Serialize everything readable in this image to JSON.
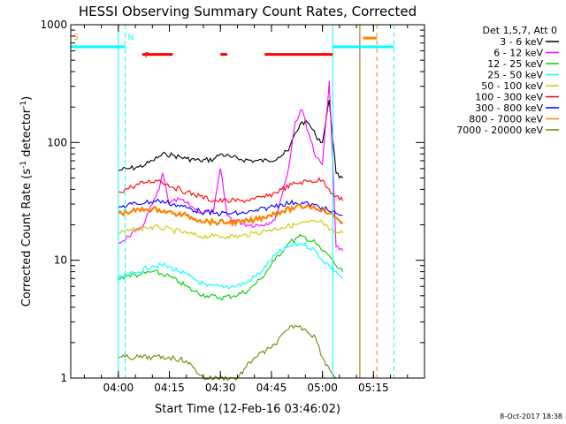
{
  "chart_data": {
    "type": "line",
    "title": "HESSI Observing Summary Count Rates, Corrected",
    "xlabel": "Start Time (12-Feb-16 03:46:02)",
    "ylabel": "Corrected Count Rate (s⁻¹ detector⁻¹)",
    "ylabel_main": "Corrected Count Rate (s",
    "ylabel_mid": " detector",
    "ylabel_end": ")",
    "ylabel_sup": "-1",
    "y_scale": "log",
    "xlim": [
      "03:46",
      "05:30"
    ],
    "ylim": [
      1,
      1000
    ],
    "x_ticks": [
      "04:00",
      "04:15",
      "04:30",
      "04:45",
      "05:00",
      "05:15"
    ],
    "y_ticks": [
      "1",
      "10",
      "100",
      "1000"
    ],
    "legend_title": "Det 1,5,7, Att 0",
    "legend_position": "right",
    "timestamp": "8-Oct-2017 18:38",
    "grid": false,
    "series": [
      {
        "name": "3 - 6 keV",
        "color": "#000000",
        "x": [
          "04:00",
          "04:03",
          "04:06",
          "04:08",
          "04:10",
          "04:12",
          "04:14",
          "04:16",
          "04:20",
          "04:24",
          "04:28",
          "04:30",
          "04:33",
          "04:36",
          "04:40",
          "04:44",
          "04:47",
          "04:50",
          "04:52",
          "04:54",
          "04:56",
          "04:58",
          "05:00",
          "05:02",
          "05:04",
          "05:05",
          "05:06"
        ],
        "values": [
          58,
          60,
          62,
          65,
          70,
          76,
          80,
          78,
          73,
          70,
          72,
          80,
          75,
          72,
          70,
          70,
          75,
          85,
          120,
          150,
          145,
          115,
          100,
          230,
          55,
          50,
          50
        ]
      },
      {
        "name": "6 - 12 keV",
        "color": "#ff00ff",
        "x": [
          "04:00",
          "04:03",
          "04:06",
          "04:08",
          "04:10",
          "04:12",
          "04:13",
          "04:15",
          "04:18",
          "04:22",
          "04:25",
          "04:28",
          "04:30",
          "04:32",
          "04:34",
          "04:38",
          "04:42",
          "04:46",
          "04:48",
          "04:50",
          "04:52",
          "04:54",
          "04:56",
          "04:58",
          "05:00",
          "05:02",
          "05:04",
          "05:06"
        ],
        "values": [
          14,
          16,
          18,
          22,
          30,
          40,
          55,
          30,
          33,
          28,
          25,
          26,
          60,
          24,
          22,
          20,
          20,
          22,
          35,
          60,
          150,
          190,
          120,
          75,
          65,
          330,
          13,
          12
        ]
      },
      {
        "name": "12 - 25 keV",
        "color": "#00cc00",
        "x": [
          "04:00",
          "04:03",
          "04:06",
          "04:10",
          "04:14",
          "04:18",
          "04:22",
          "04:26",
          "04:30",
          "04:34",
          "04:38",
          "04:42",
          "04:46",
          "04:50",
          "04:54",
          "04:58",
          "05:00",
          "05:02",
          "05:04",
          "05:06"
        ],
        "values": [
          7,
          7.5,
          7.5,
          8,
          7.5,
          6.5,
          5.5,
          5,
          4.8,
          5,
          5.5,
          7,
          10,
          14,
          16,
          14,
          12,
          11,
          9,
          8
        ]
      },
      {
        "name": "25 - 50 keV",
        "color": "#00ffff",
        "x": [
          "04:00",
          "04:03",
          "04:06",
          "04:10",
          "04:14",
          "04:18",
          "04:22",
          "04:26",
          "04:30",
          "04:34",
          "04:38",
          "04:42",
          "04:46",
          "04:50",
          "04:54",
          "04:58",
          "05:00",
          "05:02",
          "05:04",
          "05:06"
        ],
        "values": [
          7,
          7.5,
          8,
          9,
          9,
          8,
          7,
          6,
          6,
          6,
          6.5,
          8,
          11,
          13,
          14,
          12,
          10,
          9,
          8,
          7
        ]
      },
      {
        "name": "50 - 100 keV",
        "color": "#cccc00",
        "x": [
          "04:00",
          "04:04",
          "04:08",
          "04:12",
          "04:16",
          "04:20",
          "04:24",
          "04:28",
          "04:32",
          "04:36",
          "04:40",
          "04:44",
          "04:48",
          "04:52",
          "04:56",
          "05:00",
          "05:02",
          "05:04",
          "05:06"
        ],
        "values": [
          17,
          18,
          19,
          19,
          18,
          17,
          16,
          16,
          16,
          16,
          17,
          18,
          19,
          20,
          21,
          21,
          18,
          17,
          17
        ]
      },
      {
        "name": "100 - 300 keV",
        "color": "#ff0000",
        "x": [
          "04:00",
          "04:04",
          "04:08",
          "04:12",
          "04:16",
          "04:20",
          "04:24",
          "04:28",
          "04:32",
          "04:36",
          "04:40",
          "04:44",
          "04:48",
          "04:52",
          "04:56",
          "05:00",
          "05:02",
          "05:04",
          "05:06"
        ],
        "values": [
          38,
          42,
          46,
          48,
          42,
          38,
          35,
          32,
          32,
          32,
          33,
          35,
          40,
          45,
          47,
          48,
          40,
          35,
          32
        ]
      },
      {
        "name": "300 - 800 keV",
        "color": "#0000ff",
        "x": [
          "04:00",
          "04:04",
          "04:08",
          "04:12",
          "04:16",
          "04:20",
          "04:24",
          "04:28",
          "04:32",
          "04:36",
          "04:40",
          "04:44",
          "04:48",
          "04:52",
          "04:56",
          "05:00",
          "05:02",
          "05:04",
          "05:06"
        ],
        "values": [
          28,
          30,
          31,
          32,
          30,
          28,
          26,
          25,
          25,
          25,
          26,
          28,
          30,
          31,
          30,
          28,
          26,
          25,
          24
        ]
      },
      {
        "name": "800 - 7000 keV",
        "color": "#ff8000",
        "x": [
          "04:00",
          "04:04",
          "04:08",
          "04:12",
          "04:16",
          "04:20",
          "04:24",
          "04:28",
          "04:32",
          "04:36",
          "04:40",
          "04:44",
          "04:48",
          "04:52",
          "04:56",
          "05:00",
          "05:02",
          "05:04",
          "05:06"
        ],
        "values": [
          25,
          26,
          27,
          27,
          25,
          24,
          22,
          21,
          21,
          21,
          22,
          24,
          26,
          28,
          29,
          27,
          25,
          23,
          21
        ]
      },
      {
        "name": "7000 - 20000 keV",
        "color": "#808000",
        "x": [
          "04:00",
          "04:05",
          "04:10",
          "04:15",
          "04:20",
          "04:25",
          "04:30",
          "04:35",
          "04:40",
          "04:45",
          "04:50",
          "04:52",
          "04:55",
          "04:58",
          "05:00",
          "05:02",
          "05:04"
        ],
        "values": [
          1.5,
          1.5,
          1.5,
          1.5,
          1.4,
          1,
          1,
          1,
          1.5,
          1.8,
          2.6,
          2.8,
          2.6,
          2.2,
          1.5,
          1.2,
          1
        ]
      }
    ],
    "annotations": [
      {
        "label": "S",
        "color": "#ff8000",
        "x": "03:46"
      },
      {
        "label": "N",
        "color": "#00ffff",
        "x": "04:02"
      },
      {
        "label": "F",
        "color": "#ff0000",
        "x": "04:07"
      }
    ],
    "segments": [
      {
        "name": "sun bar",
        "color": "#00ffff",
        "x0": "03:46",
        "x1": "04:02",
        "y": 650
      },
      {
        "name": "sun bar",
        "color": "#00ffff",
        "x0": "05:03",
        "x1": "05:21",
        "y": 650
      },
      {
        "name": "flare bar",
        "color": "#ff0000",
        "x0": "04:07",
        "x1": "04:16",
        "y": 560
      },
      {
        "name": "flare bar",
        "color": "#ff0000",
        "x0": "04:30",
        "x1": "04:32",
        "y": 560
      },
      {
        "name": "flare bar",
        "color": "#ff0000",
        "x0": "04:43",
        "x1": "05:03",
        "y": 560
      },
      {
        "name": "saa bar",
        "color": "#ff8000",
        "x0": "05:12",
        "x1": "05:16",
        "y": 770
      }
    ],
    "vlines": [
      {
        "name": "night end",
        "color": "#00ffff",
        "x": "04:02",
        "style": "dashed"
      },
      {
        "name": "night start",
        "color": "#00ffff",
        "x": "05:03",
        "style": "solid"
      },
      {
        "name": "saa start",
        "color": "#a06000",
        "x": "05:11",
        "style": "solid"
      },
      {
        "name": "saa end",
        "color": "#ff8000",
        "x": "05:16",
        "style": "dashed"
      },
      {
        "name": "night end 2",
        "color": "#00ffff",
        "x": "05:21",
        "style": "dashed"
      },
      {
        "name": "sun start",
        "color": "#ff8000",
        "x": "03:46",
        "style": "solid"
      },
      {
        "name": "data start",
        "color": "#00ffff",
        "x": "04:00",
        "style": "solid"
      }
    ]
  }
}
